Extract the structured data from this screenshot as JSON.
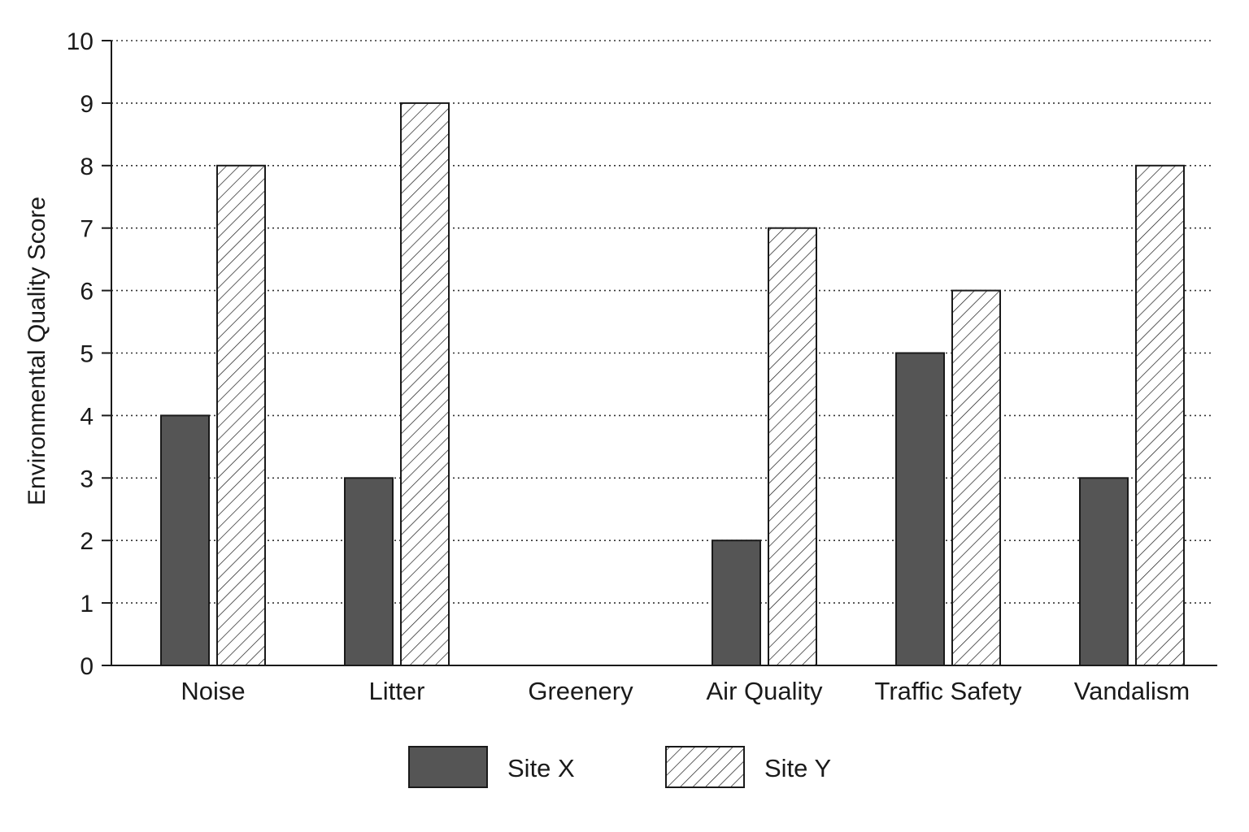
{
  "chart_data": {
    "type": "bar",
    "title": "",
    "xlabel": "",
    "ylabel": "Environmental Quality Score",
    "ylim": [
      0,
      10
    ],
    "yticks": [
      0,
      1,
      2,
      3,
      4,
      5,
      6,
      7,
      8,
      9,
      10
    ],
    "grid": true,
    "legend_position": "bottom-center",
    "categories": [
      "Noise",
      "Litter",
      "Greenery",
      "Air Quality",
      "Traffic Safety",
      "Vandalism"
    ],
    "series": [
      {
        "name": "Site X",
        "values": [
          4,
          3,
          0,
          2,
          5,
          3
        ],
        "color": "#555555",
        "pattern": "solid"
      },
      {
        "name": "Site Y",
        "values": [
          8,
          9,
          0,
          7,
          6,
          8
        ],
        "color": "#ffffff",
        "pattern": "diagonal-hatch"
      }
    ]
  }
}
